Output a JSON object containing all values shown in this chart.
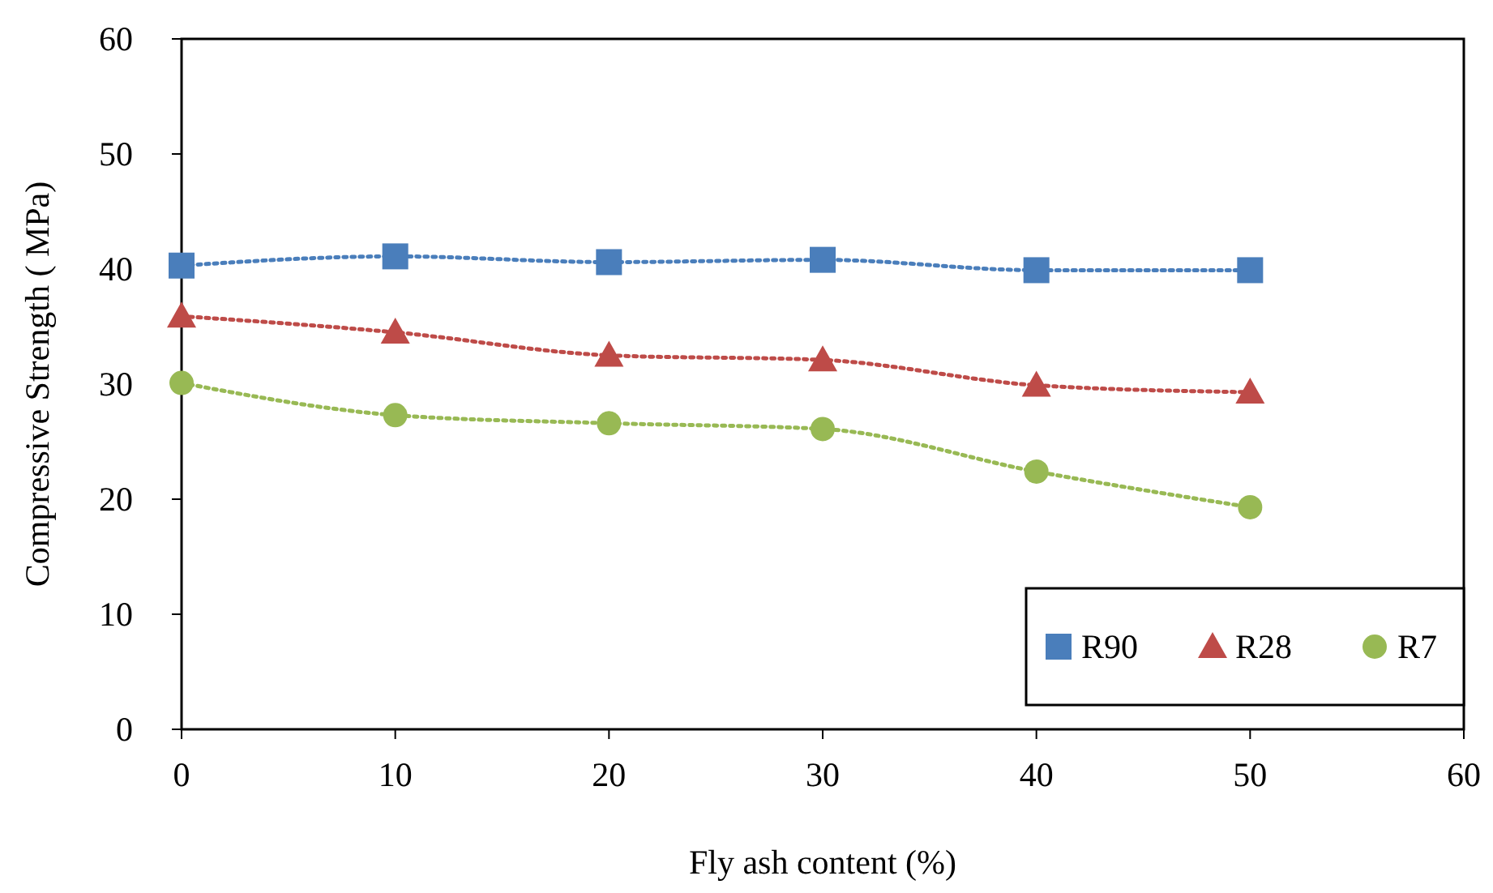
{
  "chart_data": {
    "type": "line",
    "xlabel": "Fly ash content (%)",
    "ylabel": "Compressive Strength ( MPa)",
    "x": [
      0,
      10,
      20,
      30,
      40,
      50
    ],
    "series": [
      {
        "name": "R90",
        "color": "#4a7ebb",
        "marker": "square",
        "values": [
          40.3,
          41.1,
          40.6,
          40.8,
          39.9,
          39.9
        ]
      },
      {
        "name": "R28",
        "color": "#be4b48",
        "marker": "triangle",
        "values": [
          35.9,
          34.5,
          32.5,
          32.1,
          29.9,
          29.3
        ]
      },
      {
        "name": "R7",
        "color": "#98b954",
        "marker": "circle",
        "values": [
          30.1,
          27.3,
          26.6,
          26.1,
          22.4,
          19.3
        ]
      }
    ],
    "line_style": "dotted",
    "xlim": [
      0,
      60
    ],
    "xticks": [
      0,
      10,
      20,
      30,
      40,
      50,
      60
    ],
    "ylim": [
      0,
      60
    ],
    "yticks": [
      0,
      10,
      20,
      30,
      40,
      50,
      60
    ],
    "grid": false,
    "legend": "bottom right"
  }
}
